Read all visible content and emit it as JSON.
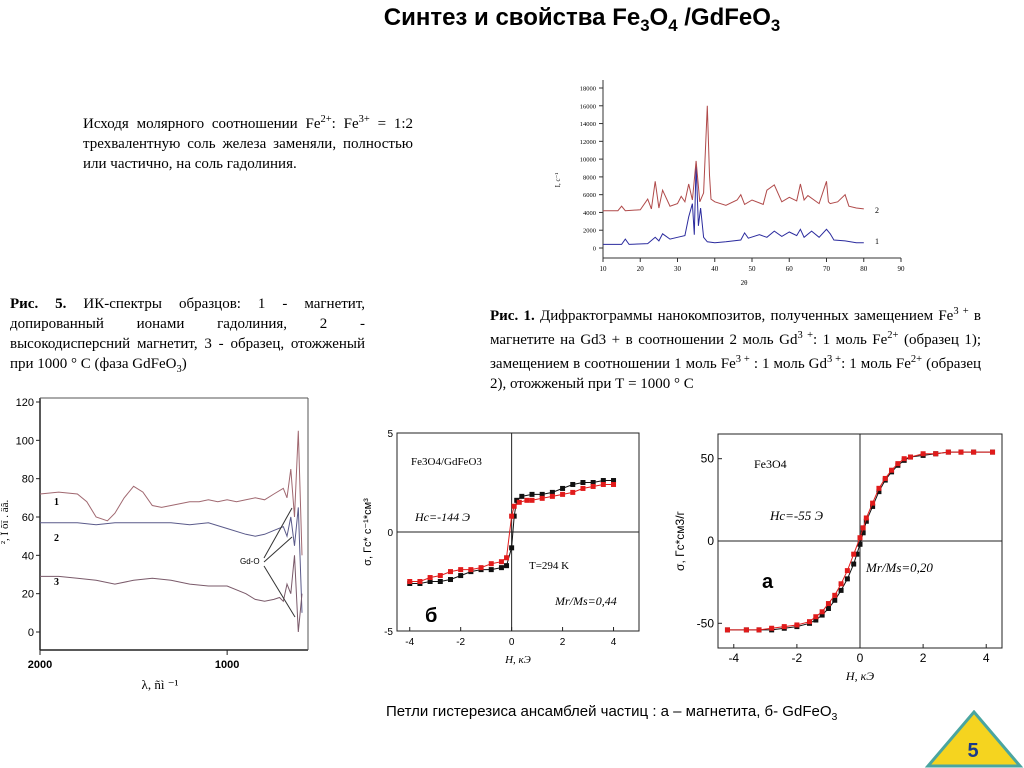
{
  "slide": {
    "title_prefix": "Синтез и свойства Fe",
    "title_sub1": "3",
    "title_mid": "O",
    "title_sub2": "4",
    "title_suffix": " /GdFeO",
    "title_sub3": "3",
    "page_number": "5"
  },
  "intro": {
    "p1": "Исходя молярного соотношении Fe",
    "p1_sup": "2+",
    "p2": ": Fe",
    "p2_sup": "3+",
    "p3": " = 1:2  трехвалентную  соль железа заменяли, полностью или частично, на соль  гадолиния."
  },
  "fig5": {
    "label": "Рис. 5.",
    "text_a": " ИК-спектры образцов: 1 - магнетит, допированный ионами гадолиния, 2 - высокодисперсний магнетит, 3 - образец, отожженый при 1000 ° С (фаза GdFeO",
    "text_sub": "3",
    "text_b": ")"
  },
  "fig1": {
    "label": "Рис.  1.",
    "text_a": "  Дифрактограммы нанокомпозитов, полученных замещением Fe",
    "sup1": "3 +",
    "text_b": " в магнетите на Gd3 + в соотношении 2 моль Gd",
    "sup2": "3 +",
    "text_c": ": 1 моль Fe",
    "sup3": "2+",
    "text_d": " (образец 1); замещением в соотношении 1 моль Fe",
    "sup4": "3 +",
    "text_e": " : 1 моль Gd",
    "sup5": "3 +",
    "text_f": ": 1 моль Fe",
    "sup6": "2+",
    "text_g": " (образец 2), отожженый при Т = 1000 ° С"
  },
  "hysteresis_caption": {
    "text_a": "Петли гистерезиса ансамблей частиц : а – магнетита, б- GdFeO",
    "sub": "3"
  },
  "chart_data": [
    {
      "type": "line",
      "name": "xrd",
      "xlabel": "2θ",
      "ylabel": "I, c⁻¹",
      "xlim": [
        10,
        90
      ],
      "ylim": [
        0,
        18000
      ],
      "x_ticks": [
        "10",
        "20",
        "30",
        "40",
        "50",
        "60",
        "70",
        "80",
        "90"
      ],
      "y_ticks": [
        "0",
        "2000",
        "4000",
        "6000",
        "8000",
        "10000",
        "12000",
        "14000",
        "16000",
        "18000"
      ],
      "series": [
        {
          "name": "1",
          "color": "#2b2b9e",
          "x": [
            10,
            15,
            16,
            17,
            22,
            24,
            25,
            26,
            28,
            30,
            32,
            33,
            34,
            34.5,
            35,
            35.6,
            36.2,
            37,
            38,
            40,
            43,
            47,
            48,
            49,
            52,
            54,
            56,
            58,
            60,
            62,
            63,
            64,
            66,
            68,
            70,
            71,
            72,
            75,
            78,
            80
          ],
          "y": [
            400,
            400,
            1000,
            400,
            500,
            1200,
            800,
            1600,
            1000,
            1200,
            1400,
            3500,
            5000,
            1500,
            9500,
            2500,
            4500,
            1200,
            700,
            600,
            700,
            900,
            1700,
            1100,
            1500,
            1200,
            1900,
            1300,
            1800,
            1400,
            2100,
            1200,
            1900,
            1200,
            2100,
            1600,
            900,
            800,
            600,
            600
          ]
        },
        {
          "name": "2",
          "color": "#b04a4a",
          "x": [
            10,
            14,
            15,
            16,
            20,
            22,
            23,
            24,
            25,
            26,
            28,
            30,
            31,
            32,
            33,
            34,
            35,
            36,
            37,
            38,
            38.6,
            39,
            40,
            43,
            46,
            47,
            48,
            50,
            53,
            54,
            56,
            58,
            60,
            62,
            63,
            64,
            65,
            68,
            70,
            70.5,
            71,
            73,
            75,
            76,
            78,
            80
          ],
          "y": [
            4200,
            4200,
            4700,
            4200,
            4300,
            5500,
            4400,
            7500,
            4500,
            6500,
            4700,
            5000,
            5800,
            5200,
            7200,
            5400,
            9800,
            5200,
            6200,
            16000,
            8200,
            5500,
            5200,
            4800,
            5400,
            6000,
            4900,
            5400,
            4900,
            6500,
            7100,
            5200,
            5700,
            5300,
            7200,
            5400,
            5900,
            5000,
            7500,
            5200,
            5000,
            5200,
            6000,
            4700,
            4500,
            4400
          ]
        }
      ],
      "annotations": [
        "2",
        "1"
      ]
    },
    {
      "type": "line",
      "name": "ir",
      "xlabel": "λ, ñì ⁻¹",
      "ylabel": "², Ï õï . äâ.",
      "xlim": [
        2000,
        600
      ],
      "ylim": [
        -10,
        120
      ],
      "x_ticks": [
        "2000",
        "1000"
      ],
      "y_ticks": [
        "0",
        "20",
        "40",
        "60",
        "80",
        "100",
        "120"
      ],
      "series": [
        {
          "name": "1",
          "color": "#a06870",
          "x": [
            2000,
            1900,
            1800,
            1750,
            1700,
            1640,
            1600,
            1550,
            1500,
            1450,
            1400,
            1350,
            1300,
            1250,
            1200,
            1150,
            1100,
            1050,
            1000,
            950,
            900,
            850,
            800,
            750,
            700,
            680,
            660,
            640,
            620,
            600
          ],
          "y": [
            72,
            73,
            72,
            68,
            60,
            58,
            62,
            70,
            76,
            73,
            66,
            65,
            66,
            67,
            68,
            68,
            69,
            68,
            69,
            68,
            69,
            70,
            69,
            72,
            75,
            70,
            85,
            60,
            105,
            40
          ]
        },
        {
          "name": "2",
          "color": "#5a5a8a",
          "x": [
            2000,
            1900,
            1800,
            1700,
            1600,
            1500,
            1400,
            1300,
            1200,
            1100,
            1000,
            900,
            850,
            800,
            750,
            700,
            680,
            660,
            640,
            620,
            600
          ],
          "y": [
            57,
            57,
            57,
            56,
            57,
            57,
            57,
            57,
            56,
            57,
            54,
            51,
            50,
            51,
            53,
            55,
            50,
            60,
            45,
            65,
            10
          ]
        },
        {
          "name": "3",
          "color": "#7a5a6a",
          "x": [
            2000,
            1900,
            1800,
            1700,
            1600,
            1500,
            1400,
            1300,
            1200,
            1100,
            1000,
            900,
            850,
            800,
            750,
            720,
            700,
            680,
            660,
            640,
            620,
            600
          ],
          "y": [
            29,
            29,
            28,
            27,
            25,
            27,
            28,
            27,
            25,
            24,
            24,
            20,
            17,
            16,
            17,
            18,
            16,
            25,
            20,
            40,
            0,
            20
          ]
        }
      ],
      "annotations": [
        "1",
        "2",
        "3",
        "Gd-O"
      ]
    },
    {
      "type": "scatter",
      "name": "gdfeo3",
      "xlabel": "H, кЭ",
      "ylabel": "σ, Гс* с⁻¹*см³",
      "xlim": [
        -4.5,
        5
      ],
      "ylim": [
        -5,
        5
      ],
      "x_ticks": [
        "-4",
        "-2",
        "0",
        "2",
        "4"
      ],
      "y_ticks": [
        "-5",
        "0",
        "5"
      ],
      "series": [
        {
          "name": "black",
          "color": "#111111",
          "x": [
            -4,
            -3.6,
            -3.2,
            -2.8,
            -2.4,
            -2.0,
            -1.6,
            -1.2,
            -0.8,
            -0.4,
            -0.2,
            0,
            0.1,
            0.2,
            0.4,
            0.8,
            1.2,
            1.6,
            2.0,
            2.4,
            2.8,
            3.2,
            3.6,
            4.0
          ],
          "y": [
            -2.6,
            -2.6,
            -2.5,
            -2.5,
            -2.4,
            -2.2,
            -2.0,
            -1.9,
            -1.9,
            -1.8,
            -1.7,
            -0.8,
            0.8,
            1.6,
            1.8,
            1.9,
            1.9,
            2.0,
            2.2,
            2.4,
            2.5,
            2.5,
            2.6,
            2.6
          ]
        },
        {
          "name": "red",
          "color": "#e11b1b",
          "x": [
            -4,
            -3.6,
            -3.2,
            -2.8,
            -2.4,
            -2.0,
            -1.6,
            -1.2,
            -0.8,
            -0.4,
            -0.2,
            0,
            0.1,
            0.3,
            0.6,
            0.8,
            1.2,
            1.6,
            2.0,
            2.4,
            2.8,
            3.2,
            3.6,
            4.0
          ],
          "y": [
            -2.5,
            -2.5,
            -2.3,
            -2.2,
            -2.0,
            -1.9,
            -1.9,
            -1.8,
            -1.6,
            -1.5,
            -1.3,
            0.8,
            1.3,
            1.5,
            1.6,
            1.6,
            1.7,
            1.8,
            1.9,
            2.0,
            2.2,
            2.3,
            2.4,
            2.4
          ]
        }
      ],
      "annotations": {
        "formula": "Fe3O4/GdFeO3",
        "hc": "Hc=-144  Э",
        "temp": "T=294 K",
        "ratio": "Mr/Ms=0,44",
        "panel": "б"
      }
    },
    {
      "type": "scatter",
      "name": "fe3o4",
      "xlabel": "H, кЭ",
      "ylabel": "σ, Гс*см3/г",
      "xlim": [
        -4.5,
        4.5
      ],
      "ylim": [
        -65,
        65
      ],
      "x_ticks": [
        "-4",
        "-2",
        "0",
        "2",
        "4"
      ],
      "y_ticks": [
        "50",
        "0",
        "-50"
      ],
      "series": [
        {
          "name": "black",
          "color": "#111111",
          "x": [
            -4.2,
            -3.6,
            -3.2,
            -2.8,
            -2.4,
            -2.0,
            -1.6,
            -1.4,
            -1.2,
            -1.0,
            -0.8,
            -0.6,
            -0.4,
            -0.2,
            -0.1,
            0,
            0.1,
            0.2,
            0.4,
            0.6,
            0.8,
            1.0,
            1.2,
            1.4,
            1.6,
            2.0,
            2.4,
            2.8,
            3.2,
            3.6,
            4.2
          ],
          "y": [
            -54,
            -54,
            -54,
            -54,
            -53,
            -52,
            -50,
            -48,
            -45,
            -41,
            -36,
            -30,
            -23,
            -14,
            -8,
            -2,
            5,
            12,
            21,
            30,
            37,
            42,
            46,
            49,
            51,
            52,
            53,
            54,
            54,
            54,
            54
          ]
        },
        {
          "name": "red",
          "color": "#e11b1b",
          "x": [
            -4.2,
            -3.6,
            -3.2,
            -2.8,
            -2.4,
            -2.0,
            -1.6,
            -1.4,
            -1.2,
            -1.0,
            -0.8,
            -0.6,
            -0.4,
            -0.2,
            0,
            0.1,
            0.2,
            0.4,
            0.6,
            0.8,
            1.0,
            1.2,
            1.4,
            1.6,
            2.0,
            2.4,
            2.8,
            3.2,
            3.6,
            4.2
          ],
          "y": [
            -54,
            -54,
            -54,
            -53,
            -52,
            -51,
            -49,
            -46,
            -43,
            -38,
            -33,
            -26,
            -18,
            -8,
            2,
            8,
            14,
            23,
            32,
            38,
            43,
            47,
            50,
            51,
            53,
            53,
            54,
            54,
            54,
            54
          ]
        }
      ],
      "annotations": {
        "formula": "Fe3O4",
        "hc": "Hc=-55 Э",
        "ratio": "Mr/Ms=0,20",
        "panel": "a"
      }
    }
  ]
}
